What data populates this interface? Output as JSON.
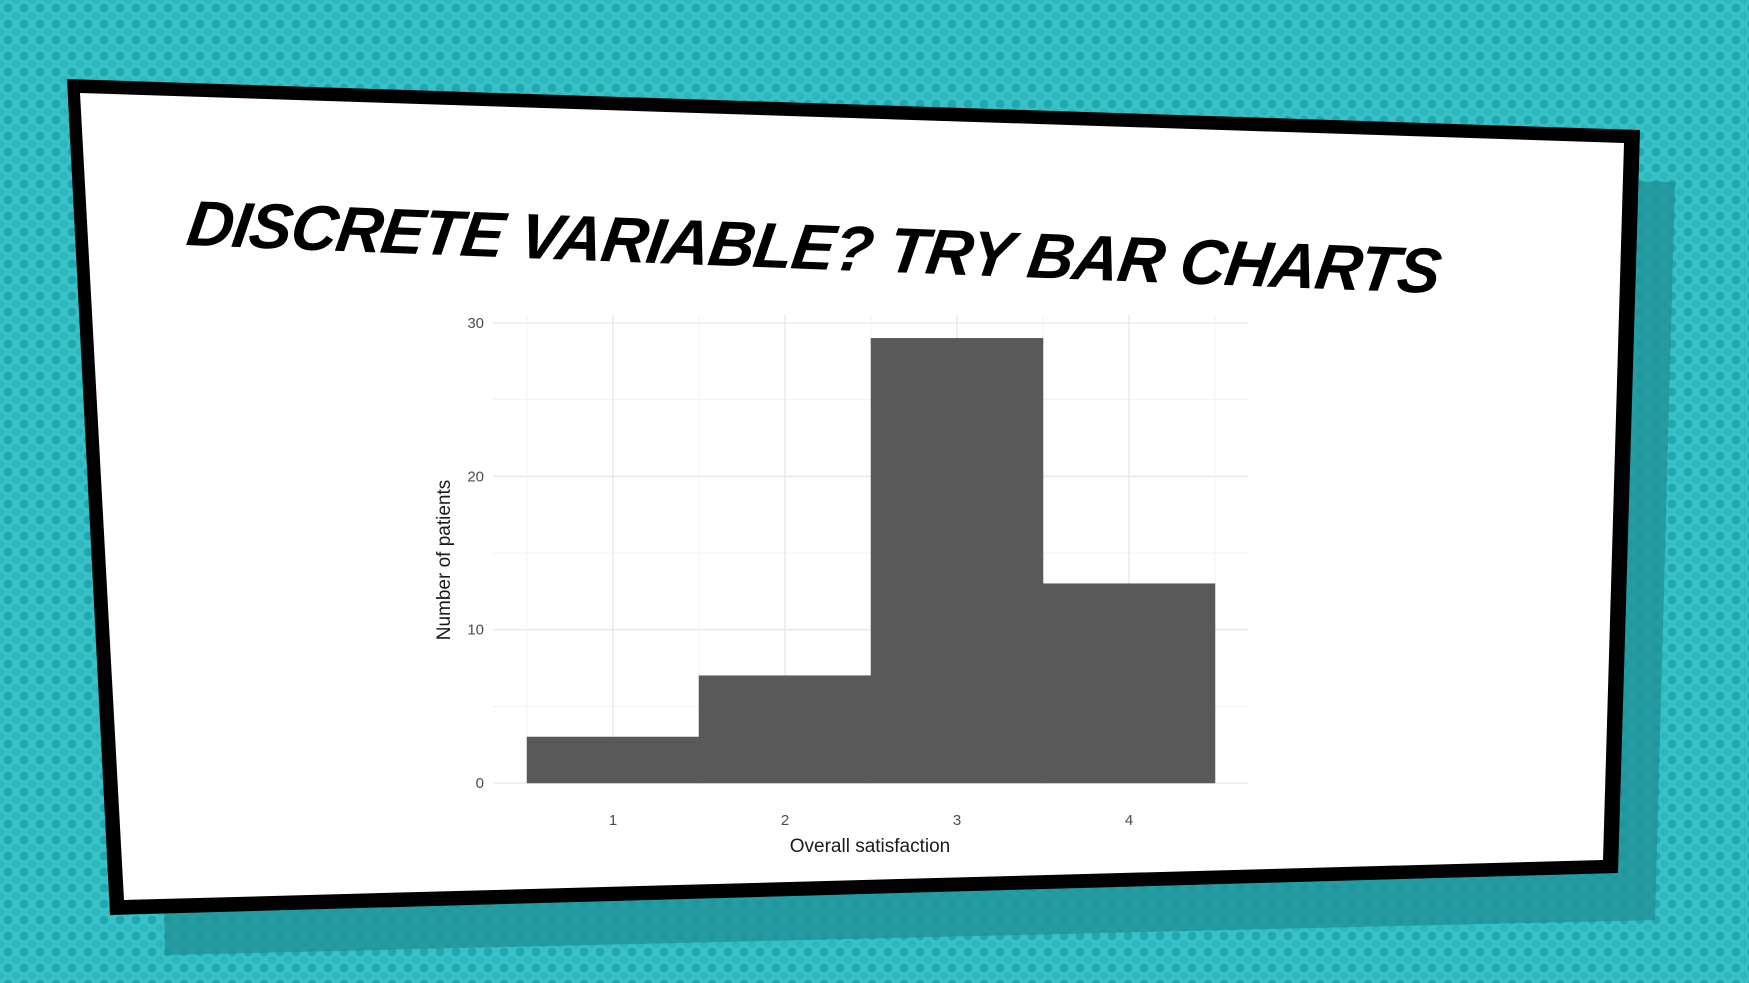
{
  "slide": {
    "title": "DISCRETE VARIABLE? TRY BAR CHARTS"
  },
  "colors": {
    "background": "#35c1c8",
    "bar_fill": "#595959",
    "panel": "#ffffff",
    "border": "#000000"
  },
  "chart_data": {
    "type": "bar",
    "categories": [
      "1",
      "2",
      "3",
      "4"
    ],
    "values": [
      3,
      7,
      29,
      13
    ],
    "xlabel": "Overall satisfaction",
    "ylabel": "Number of patients",
    "ylim": [
      0,
      30
    ],
    "yticks": [
      "0",
      "10",
      "20",
      "30"
    ],
    "grid": true,
    "legend": "none"
  }
}
